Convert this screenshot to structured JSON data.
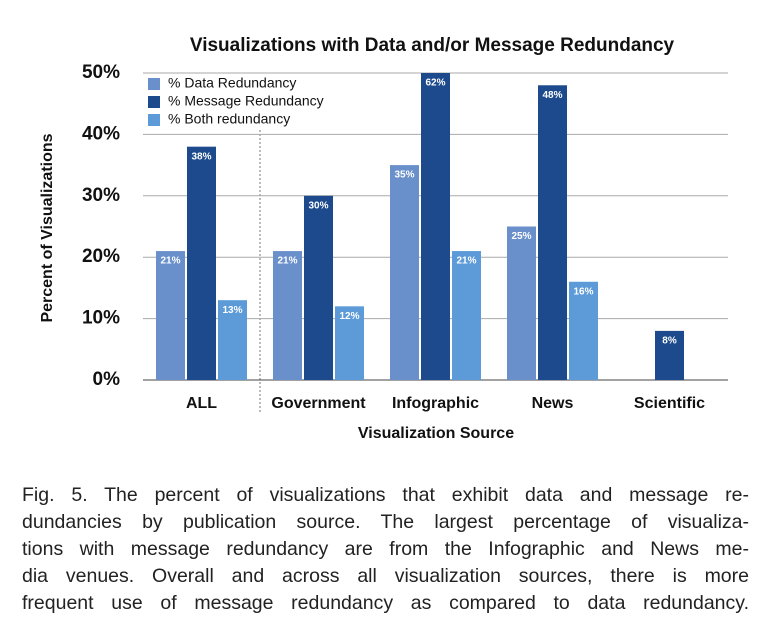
{
  "chart_data": {
    "type": "bar",
    "title": "Visualizations with Data and/or Message Redundancy",
    "x_label": "Visualization Source",
    "y_label": "Percent of Visualizations",
    "categories": [
      "ALL",
      "Government",
      "Infographic",
      "News",
      "Scientific"
    ],
    "series": [
      {
        "name": "% Data Redundancy",
        "color": "#6990cb",
        "values": [
          21,
          21,
          35,
          25,
          null
        ],
        "value_labels": [
          "21%",
          "21%",
          "35%",
          "25%",
          null
        ]
      },
      {
        "name": "% Message Redundancy",
        "color": "#1c4a8c",
        "values": [
          38,
          30,
          62,
          48,
          8
        ],
        "value_labels": [
          "38%",
          "30%",
          "62%",
          "48%",
          "8%"
        ]
      },
      {
        "name": "% Both redundancy",
        "color": "#5c9bd8",
        "values": [
          13,
          12,
          21,
          16,
          null
        ],
        "value_labels": [
          "13%",
          "12%",
          "21%",
          "16%",
          null
        ]
      }
    ],
    "ylim": [
      0,
      50
    ],
    "yticks": [
      {
        "value": 0,
        "label": "0%"
      },
      {
        "value": 10,
        "label": "10%"
      },
      {
        "value": 20,
        "label": "20%"
      },
      {
        "value": 30,
        "label": "30%"
      },
      {
        "value": 40,
        "label": "40%"
      },
      {
        "value": 50,
        "label": "50%"
      }
    ],
    "grid": true,
    "legend": "top-left"
  },
  "caption": {
    "lines": [
      "Fig. 5.  The percent of visualizations that exhibit data and message re-",
      "dundancies by publication source.  The largest percentage of visualiza-",
      "tions with message redundancy are from the Infographic and News me-",
      "dia venues.  Overall and across all visualization sources, there is more",
      "frequent use of message redundancy as compared to data redundancy."
    ]
  }
}
